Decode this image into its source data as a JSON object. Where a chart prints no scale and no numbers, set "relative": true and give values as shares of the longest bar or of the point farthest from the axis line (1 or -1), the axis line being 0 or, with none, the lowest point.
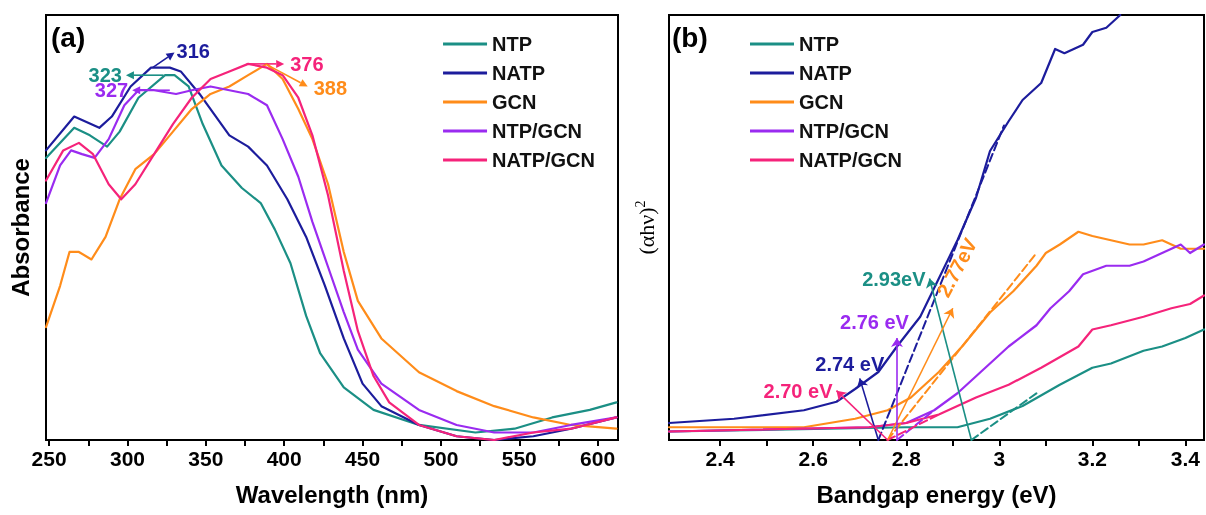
{
  "chart_data": [
    {
      "type": "line",
      "title": "(a)",
      "xlabel": "Wavelength (nm)",
      "ylabel": "Absorbance",
      "relative": true,
      "xlim": [
        248,
        613
      ],
      "xticks": [
        250,
        {
          "value": 275,
          "label": null
        },
        300,
        {
          "value": 325,
          "label": null
        },
        350,
        {
          "value": 375,
          "label": null
        },
        400,
        {
          "value": 425,
          "label": null
        },
        450,
        {
          "value": 475,
          "label": null
        },
        500,
        {
          "value": 525,
          "label": null
        },
        550,
        {
          "value": 575,
          "label": null
        },
        600
      ],
      "grid": false,
      "legend": "top right",
      "tick_labels": "x",
      "marker": "none",
      "line_style": "solid",
      "series": [
        {
          "name": "NTP",
          "color": "#1b8f85",
          "x": [
            248,
            266,
            276,
            287,
            295,
            307,
            324,
            330,
            339,
            348,
            360,
            373,
            385,
            394,
            404,
            414,
            423,
            438,
            457,
            486,
            522,
            547,
            571,
            595,
            612
          ],
          "values": [
            0.75,
            0.83,
            0.81,
            0.78,
            0.82,
            0.91,
            0.97,
            0.97,
            0.94,
            0.84,
            0.73,
            0.67,
            0.63,
            0.56,
            0.47,
            0.33,
            0.23,
            0.14,
            0.08,
            0.04,
            0.02,
            0.03,
            0.06,
            0.08,
            0.1
          ]
        },
        {
          "name": "NATP",
          "color": "#1c1c9c",
          "x": [
            248,
            266,
            282,
            290,
            302,
            315,
            327,
            334,
            346,
            365,
            377,
            389,
            402,
            414,
            426,
            438,
            450,
            462,
            486,
            510,
            534,
            559,
            583,
            612
          ],
          "values": [
            0.77,
            0.86,
            0.83,
            0.86,
            0.94,
            0.99,
            0.99,
            0.98,
            0.92,
            0.81,
            0.78,
            0.73,
            0.64,
            0.54,
            0.41,
            0.27,
            0.15,
            0.09,
            0.04,
            0.01,
            0.0,
            0.01,
            0.03,
            0.06
          ]
        },
        {
          "name": "GCN",
          "color": "#ff8c1a",
          "x": [
            248,
            257,
            263,
            269,
            277,
            286,
            295,
            305,
            317,
            329,
            341,
            353,
            365,
            377,
            389,
            399,
            409,
            418,
            428,
            438,
            447,
            462,
            486,
            510,
            534,
            559,
            583,
            612
          ],
          "values": [
            0.3,
            0.41,
            0.5,
            0.5,
            0.48,
            0.54,
            0.64,
            0.72,
            0.76,
            0.82,
            0.88,
            0.92,
            0.94,
            0.97,
            1.0,
            0.96,
            0.88,
            0.8,
            0.68,
            0.5,
            0.37,
            0.27,
            0.18,
            0.13,
            0.09,
            0.06,
            0.04,
            0.03
          ]
        },
        {
          "name": "NTP/GCN",
          "color": "#9a2bf0",
          "x": [
            248,
            257,
            264,
            271,
            279,
            288,
            298,
            307,
            317,
            331,
            341,
            353,
            365,
            377,
            389,
            399,
            409,
            418,
            428,
            438,
            447,
            462,
            486,
            510,
            534,
            559,
            583,
            612
          ],
          "values": [
            0.63,
            0.73,
            0.77,
            0.76,
            0.75,
            0.8,
            0.89,
            0.93,
            0.93,
            0.92,
            0.93,
            0.94,
            0.93,
            0.92,
            0.89,
            0.8,
            0.7,
            0.58,
            0.46,
            0.34,
            0.24,
            0.15,
            0.08,
            0.04,
            0.02,
            0.02,
            0.04,
            0.06
          ]
        },
        {
          "name": "NATP/GCN",
          "color": "#f5237a",
          "x": [
            248,
            259,
            269,
            278,
            288,
            296,
            305,
            317,
            329,
            341,
            353,
            365,
            377,
            389,
            399,
            409,
            418,
            428,
            438,
            447,
            457,
            467,
            486,
            510,
            534,
            559,
            583,
            612
          ],
          "values": [
            0.69,
            0.77,
            0.79,
            0.76,
            0.68,
            0.64,
            0.68,
            0.76,
            0.84,
            0.91,
            0.96,
            0.98,
            1.0,
            0.99,
            0.97,
            0.91,
            0.81,
            0.65,
            0.45,
            0.29,
            0.17,
            0.1,
            0.04,
            0.01,
            0.0,
            0.02,
            0.03,
            0.06
          ]
        }
      ],
      "annotations": [
        {
          "text": "323",
          "x": 323,
          "y": 0.97
        },
        {
          "text": "316",
          "x": 316,
          "y": 0.99
        },
        {
          "text": "376",
          "x": 376,
          "y": 1.0
        },
        {
          "text": "388",
          "x": 388,
          "y": 1.0
        },
        {
          "text": "327",
          "x": 327,
          "y": 0.93
        }
      ]
    },
    {
      "type": "line",
      "title": "(b)",
      "xlabel": "Bandgap energy (eV)",
      "ylabel": "(αhν)$^{2}$",
      "relative": true,
      "xlim": [
        2.29,
        3.44
      ],
      "xticks": [
        2.4,
        {
          "value": 2.5,
          "label": null
        },
        2.6,
        {
          "value": 2.7,
          "label": null
        },
        2.8,
        {
          "value": 2.9,
          "label": null
        },
        3.0,
        {
          "value": 3.1,
          "label": null
        },
        3.2,
        {
          "value": 3.3,
          "label": null
        },
        3.4
      ],
      "grid": false,
      "legend": "top left",
      "tick_labels": "x",
      "marker": "none",
      "line_style": "solid",
      "series": [
        {
          "name": "NTP",
          "color": "#1b8f85",
          "x": [
            2.29,
            2.8,
            2.91,
            2.98,
            3.05,
            3.13,
            3.2,
            3.24,
            3.31,
            3.35,
            3.4,
            3.44
          ],
          "values": [
            0.02,
            0.03,
            0.03,
            0.05,
            0.08,
            0.13,
            0.17,
            0.18,
            0.21,
            0.22,
            0.24,
            0.26
          ]
        },
        {
          "name": "NATP",
          "color": "#1c1c9c",
          "x": [
            2.29,
            2.43,
            2.58,
            2.65,
            2.69,
            2.74,
            2.78,
            2.83,
            2.87,
            2.91,
            2.95,
            2.98,
            3.02,
            3.05,
            3.09,
            3.12,
            3.14,
            3.18,
            3.2,
            3.23,
            3.26
          ],
          "values": [
            0.04,
            0.05,
            0.07,
            0.09,
            0.12,
            0.16,
            0.22,
            0.29,
            0.38,
            0.47,
            0.57,
            0.68,
            0.75,
            0.8,
            0.84,
            0.92,
            0.91,
            0.93,
            0.96,
            0.97,
            1.0
          ]
        },
        {
          "name": "GCN",
          "color": "#ff8c1a",
          "x": [
            2.29,
            2.58,
            2.69,
            2.76,
            2.81,
            2.87,
            2.92,
            2.98,
            3.03,
            3.08,
            3.1,
            3.13,
            3.17,
            3.2,
            3.24,
            3.28,
            3.31,
            3.35,
            3.39,
            3.44
          ],
          "values": [
            0.03,
            0.03,
            0.05,
            0.07,
            0.1,
            0.16,
            0.22,
            0.3,
            0.35,
            0.41,
            0.44,
            0.46,
            0.49,
            0.48,
            0.47,
            0.46,
            0.46,
            0.47,
            0.45,
            0.45
          ]
        },
        {
          "name": "NTP/GCN",
          "color": "#9a2bf0",
          "x": [
            2.29,
            2.72,
            2.8,
            2.86,
            2.91,
            2.96,
            3.02,
            3.08,
            3.11,
            3.15,
            3.18,
            3.23,
            3.28,
            3.31,
            3.35,
            3.39,
            3.41,
            3.44
          ],
          "values": [
            0.02,
            0.03,
            0.04,
            0.07,
            0.11,
            0.16,
            0.22,
            0.27,
            0.31,
            0.35,
            0.39,
            0.41,
            0.41,
            0.42,
            0.44,
            0.46,
            0.44,
            0.46
          ]
        },
        {
          "name": "NATP/GCN",
          "color": "#f5237a",
          "x": [
            2.29,
            2.72,
            2.8,
            2.87,
            2.95,
            3.02,
            3.09,
            3.17,
            3.2,
            3.24,
            3.31,
            3.37,
            3.41,
            3.44
          ],
          "values": [
            0.02,
            0.03,
            0.04,
            0.06,
            0.1,
            0.13,
            0.17,
            0.22,
            0.26,
            0.27,
            0.29,
            0.31,
            0.32,
            0.34
          ]
        },
        {
          "type": "line",
          "color": "#1b8f85",
          "line_style": "dashed",
          "x": [
            2.94,
            3.08
          ],
          "values": [
            0,
            0.11
          ]
        },
        {
          "type": "line",
          "color": "#1c1c9c",
          "line_style": "dashed",
          "x": [
            2.74,
            3.01
          ],
          "values": [
            0,
            0.74
          ]
        },
        {
          "type": "line",
          "color": "#ff8c1a",
          "line_style": "dashed",
          "x": [
            2.76,
            3.08
          ],
          "values": [
            0,
            0.44
          ]
        },
        {
          "type": "line",
          "color": "#9a2bf0",
          "line_style": "dashed",
          "x": [
            2.78,
            2.86
          ],
          "values": [
            0,
            0.07
          ]
        },
        {
          "type": "line",
          "color": "#f5237a",
          "line_style": "dashed",
          "x": [
            2.76,
            2.87
          ],
          "values": [
            0,
            0.06
          ]
        }
      ],
      "annotations": [
        {
          "text": "2.93eV",
          "x": 2.94,
          "y": 0
        },
        {
          "text": "2.77eV",
          "x": 2.76,
          "y": 0
        },
        {
          "text": "2.76 eV",
          "x": 2.78,
          "y": 0
        },
        {
          "text": "2.74 eV",
          "x": 2.74,
          "y": 0
        },
        {
          "text": "2.70 eV",
          "x": 2.76,
          "y": 0
        }
      ]
    }
  ]
}
